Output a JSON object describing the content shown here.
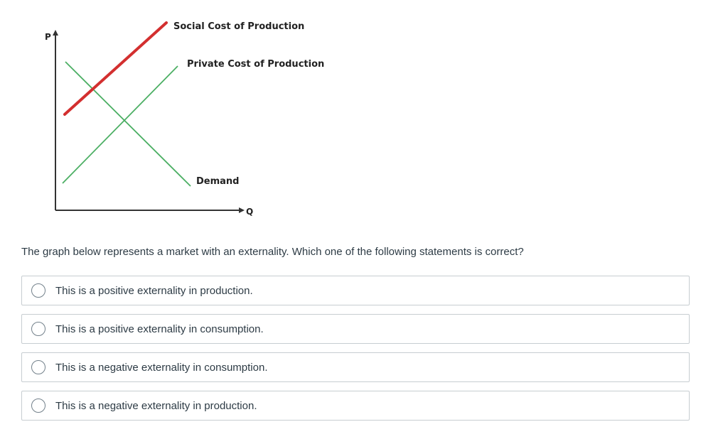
{
  "diagram": {
    "axes": {
      "y_label": "P",
      "x_label": "Q"
    },
    "curves": [
      {
        "label": "Social Cost of Production",
        "color": "#d32f2f",
        "slope": "upward"
      },
      {
        "label": "Private Cost of Production",
        "color": "#4caf64",
        "slope": "upward"
      },
      {
        "label": "Demand",
        "color": "#4caf64",
        "slope": "downward"
      }
    ]
  },
  "question": {
    "text": "The graph below represents a market with an externality. Which one of the following statements is correct?",
    "options": [
      {
        "label": "This is a positive externality in production.",
        "selected": false
      },
      {
        "label": "This is a positive externality in consumption.",
        "selected": false
      },
      {
        "label": "This is a negative externality in consumption.",
        "selected": false
      },
      {
        "label": "This is a negative externality in production.",
        "selected": false
      }
    ]
  }
}
